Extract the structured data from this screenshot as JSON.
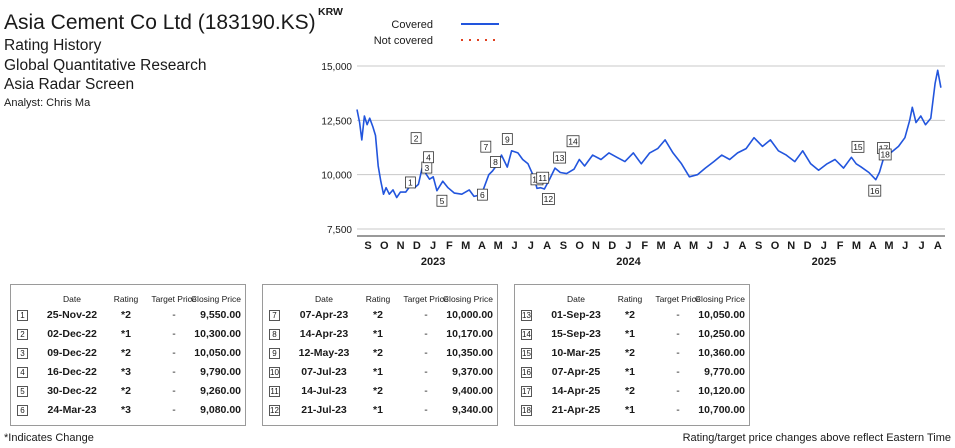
{
  "header": {
    "company": "Asia Cement Co Ltd (183190.KS)",
    "line1": "Rating History",
    "line2": "Global Quantitative Research",
    "line3": "Asia Radar Screen",
    "analyst": "Analyst: Chris Ma"
  },
  "chart_data": {
    "type": "line",
    "ylabel": "KRW",
    "ylim": [
      7500,
      15000
    ],
    "yticks": [
      7500,
      10000,
      12500,
      15000
    ],
    "ytick_labels": [
      "7,500",
      "10,000",
      "12,500",
      "15,000"
    ],
    "x_range": [
      "2022-08",
      "2025-08"
    ],
    "month_labels": [
      "S",
      "O",
      "N",
      "D",
      "J",
      "F",
      "M",
      "A",
      "M",
      "J",
      "J",
      "A",
      "S",
      "O",
      "N",
      "D",
      "J",
      "F",
      "M",
      "A",
      "M",
      "J",
      "J",
      "A",
      "S",
      "O",
      "N",
      "D",
      "J",
      "F",
      "M",
      "A",
      "M",
      "J",
      "J",
      "A"
    ],
    "year_labels": [
      "2023",
      "2024",
      "2025"
    ],
    "legend": [
      {
        "label": "Covered",
        "color": "#2255dd",
        "style": "solid"
      },
      {
        "label": "Not covered",
        "color": "#e04020",
        "style": "dotted"
      }
    ],
    "series": [
      {
        "name": "Covered",
        "color": "#2255dd",
        "points": [
          [
            "2022-08-01",
            13000
          ],
          [
            "2022-08-06",
            12400
          ],
          [
            "2022-08-10",
            11600
          ],
          [
            "2022-08-15",
            12700
          ],
          [
            "2022-08-20",
            12300
          ],
          [
            "2022-08-25",
            12600
          ],
          [
            "2022-08-31",
            12200
          ],
          [
            "2022-09-05",
            11800
          ],
          [
            "2022-09-10",
            10400
          ],
          [
            "2022-09-15",
            9700
          ],
          [
            "2022-09-20",
            9100
          ],
          [
            "2022-09-25",
            9400
          ],
          [
            "2022-10-01",
            9100
          ],
          [
            "2022-10-08",
            9300
          ],
          [
            "2022-10-15",
            8950
          ],
          [
            "2022-10-22",
            9200
          ],
          [
            "2022-11-01",
            9200
          ],
          [
            "2022-11-10",
            9500
          ],
          [
            "2022-11-18",
            9400
          ],
          [
            "2022-11-25",
            9550
          ],
          [
            "2022-12-02",
            10300
          ],
          [
            "2022-12-05",
            10450
          ],
          [
            "2022-12-09",
            10050
          ],
          [
            "2022-12-16",
            9790
          ],
          [
            "2022-12-23",
            9900
          ],
          [
            "2022-12-30",
            9260
          ],
          [
            "2023-01-10",
            9700
          ],
          [
            "2023-01-20",
            9400
          ],
          [
            "2023-02-01",
            9150
          ],
          [
            "2023-02-15",
            9100
          ],
          [
            "2023-03-01",
            9300
          ],
          [
            "2023-03-10",
            9000
          ],
          [
            "2023-03-24",
            9080
          ],
          [
            "2023-04-07",
            10000
          ],
          [
            "2023-04-14",
            10170
          ],
          [
            "2023-04-24",
            10500
          ],
          [
            "2023-05-01",
            10900
          ],
          [
            "2023-05-12",
            10350
          ],
          [
            "2023-05-20",
            11100
          ],
          [
            "2023-06-01",
            11000
          ],
          [
            "2023-06-10",
            10700
          ],
          [
            "2023-06-20",
            10500
          ],
          [
            "2023-07-01",
            9900
          ],
          [
            "2023-07-07",
            9370
          ],
          [
            "2023-07-14",
            9400
          ],
          [
            "2023-07-21",
            9340
          ],
          [
            "2023-07-31",
            9800
          ],
          [
            "2023-08-10",
            10300
          ],
          [
            "2023-08-20",
            10100
          ],
          [
            "2023-09-01",
            10050
          ],
          [
            "2023-09-15",
            10250
          ],
          [
            "2023-09-25",
            10700
          ],
          [
            "2023-10-05",
            10400
          ],
          [
            "2023-10-20",
            10900
          ],
          [
            "2023-11-05",
            10700
          ],
          [
            "2023-11-20",
            11000
          ],
          [
            "2023-12-05",
            10800
          ],
          [
            "2023-12-20",
            10600
          ],
          [
            "2024-01-05",
            11000
          ],
          [
            "2024-01-20",
            10500
          ],
          [
            "2024-02-05",
            11000
          ],
          [
            "2024-02-20",
            11200
          ],
          [
            "2024-03-05",
            11600
          ],
          [
            "2024-03-20",
            11000
          ],
          [
            "2024-04-05",
            10500
          ],
          [
            "2024-04-20",
            9900
          ],
          [
            "2024-05-05",
            10000
          ],
          [
            "2024-05-20",
            10300
          ],
          [
            "2024-06-05",
            10600
          ],
          [
            "2024-06-20",
            10900
          ],
          [
            "2024-07-05",
            10700
          ],
          [
            "2024-07-20",
            11000
          ],
          [
            "2024-08-05",
            11200
          ],
          [
            "2024-08-20",
            11700
          ],
          [
            "2024-09-05",
            11300
          ],
          [
            "2024-09-20",
            11600
          ],
          [
            "2024-10-05",
            11100
          ],
          [
            "2024-10-20",
            10900
          ],
          [
            "2024-11-05",
            10600
          ],
          [
            "2024-11-20",
            11100
          ],
          [
            "2024-12-05",
            10500
          ],
          [
            "2024-12-20",
            10200
          ],
          [
            "2025-01-05",
            10500
          ],
          [
            "2025-01-20",
            10700
          ],
          [
            "2025-02-05",
            10300
          ],
          [
            "2025-02-20",
            10800
          ],
          [
            "2025-03-01",
            10500
          ],
          [
            "2025-03-10",
            10360
          ],
          [
            "2025-03-25",
            10100
          ],
          [
            "2025-04-07",
            9770
          ],
          [
            "2025-04-14",
            10120
          ],
          [
            "2025-04-21",
            10700
          ],
          [
            "2025-05-05",
            11000
          ],
          [
            "2025-05-20",
            11300
          ],
          [
            "2025-06-01",
            11700
          ],
          [
            "2025-06-10",
            12500
          ],
          [
            "2025-06-15",
            13100
          ],
          [
            "2025-06-22",
            12400
          ],
          [
            "2025-07-01",
            12700
          ],
          [
            "2025-07-10",
            12300
          ],
          [
            "2025-07-20",
            12600
          ],
          [
            "2025-07-28",
            14200
          ],
          [
            "2025-08-02",
            14800
          ],
          [
            "2025-08-08",
            14000
          ]
        ]
      },
      {
        "name": "Not covered",
        "color": "#e04020",
        "points": []
      }
    ],
    "rating_markers": [
      {
        "n": "1",
        "date": "2022-11-25",
        "price": 9550
      },
      {
        "n": "2",
        "date": "2022-12-02",
        "price": 10300
      },
      {
        "n": "3",
        "date": "2022-12-09",
        "price": 10050
      },
      {
        "n": "4",
        "date": "2022-12-16",
        "price": 9790
      },
      {
        "n": "5",
        "date": "2022-12-30",
        "price": 9260
      },
      {
        "n": "6",
        "date": "2023-03-24",
        "price": 9080
      },
      {
        "n": "7",
        "date": "2023-04-07",
        "price": 10000
      },
      {
        "n": "8",
        "date": "2023-04-14",
        "price": 10170
      },
      {
        "n": "9",
        "date": "2023-05-12",
        "price": 10350
      },
      {
        "n": "10",
        "date": "2023-07-07",
        "price": 9370
      },
      {
        "n": "11",
        "date": "2023-07-14",
        "price": 9400
      },
      {
        "n": "12",
        "date": "2023-07-21",
        "price": 9340
      },
      {
        "n": "13",
        "date": "2023-09-01",
        "price": 10050
      },
      {
        "n": "14",
        "date": "2023-09-15",
        "price": 10250
      },
      {
        "n": "15",
        "date": "2025-03-10",
        "price": 10360
      },
      {
        "n": "16",
        "date": "2025-04-07",
        "price": 9770
      },
      {
        "n": "17",
        "date": "2025-04-14",
        "price": 10120
      },
      {
        "n": "18",
        "date": "2025-04-21",
        "price": 10700
      }
    ]
  },
  "table_headers": {
    "date": "Date",
    "rating": "Rating",
    "target": "Target Price",
    "close": "Closing Price"
  },
  "tables": [
    [
      {
        "n": "1",
        "date": "25-Nov-22",
        "rating": "*2",
        "target": "-",
        "close": "9,550.00"
      },
      {
        "n": "2",
        "date": "02-Dec-22",
        "rating": "*1",
        "target": "-",
        "close": "10,300.00"
      },
      {
        "n": "3",
        "date": "09-Dec-22",
        "rating": "*2",
        "target": "-",
        "close": "10,050.00"
      },
      {
        "n": "4",
        "date": "16-Dec-22",
        "rating": "*3",
        "target": "-",
        "close": "9,790.00"
      },
      {
        "n": "5",
        "date": "30-Dec-22",
        "rating": "*2",
        "target": "-",
        "close": "9,260.00"
      },
      {
        "n": "6",
        "date": "24-Mar-23",
        "rating": "*3",
        "target": "-",
        "close": "9,080.00"
      }
    ],
    [
      {
        "n": "7",
        "date": "07-Apr-23",
        "rating": "*2",
        "target": "-",
        "close": "10,000.00"
      },
      {
        "n": "8",
        "date": "14-Apr-23",
        "rating": "*1",
        "target": "-",
        "close": "10,170.00"
      },
      {
        "n": "9",
        "date": "12-May-23",
        "rating": "*2",
        "target": "-",
        "close": "10,350.00"
      },
      {
        "n": "10",
        "date": "07-Jul-23",
        "rating": "*1",
        "target": "-",
        "close": "9,370.00"
      },
      {
        "n": "11",
        "date": "14-Jul-23",
        "rating": "*2",
        "target": "-",
        "close": "9,400.00"
      },
      {
        "n": "12",
        "date": "21-Jul-23",
        "rating": "*1",
        "target": "-",
        "close": "9,340.00"
      }
    ],
    [
      {
        "n": "13",
        "date": "01-Sep-23",
        "rating": "*2",
        "target": "-",
        "close": "10,050.00"
      },
      {
        "n": "14",
        "date": "15-Sep-23",
        "rating": "*1",
        "target": "-",
        "close": "10,250.00"
      },
      {
        "n": "15",
        "date": "10-Mar-25",
        "rating": "*2",
        "target": "-",
        "close": "10,360.00"
      },
      {
        "n": "16",
        "date": "07-Apr-25",
        "rating": "*1",
        "target": "-",
        "close": "9,770.00"
      },
      {
        "n": "17",
        "date": "14-Apr-25",
        "rating": "*2",
        "target": "-",
        "close": "10,120.00"
      },
      {
        "n": "18",
        "date": "21-Apr-25",
        "rating": "*1",
        "target": "-",
        "close": "10,700.00"
      }
    ]
  ],
  "footnotes": {
    "left": "*Indicates Change",
    "right": "Rating/target price changes above reflect Eastern Time"
  }
}
